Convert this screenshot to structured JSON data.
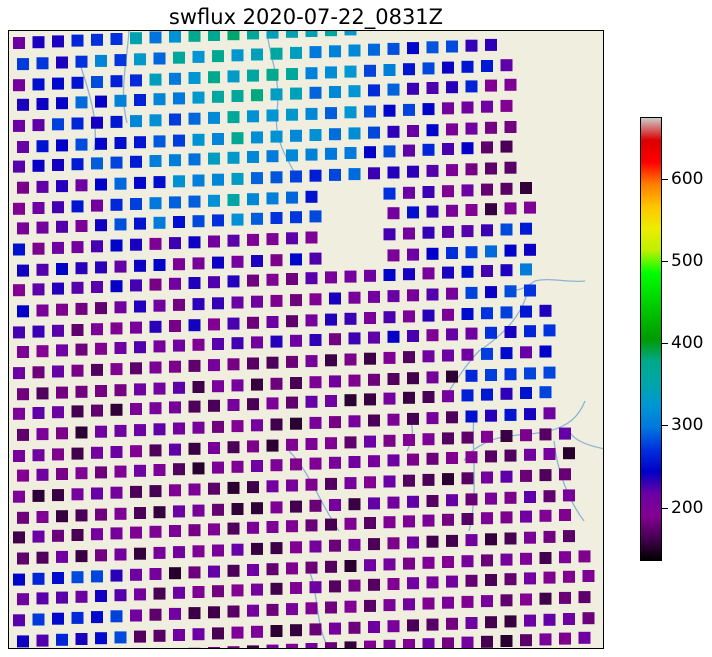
{
  "title": "swflux 2020-07-22_0831Z",
  "map": {
    "background_color": "#efeedf",
    "river_color": "#8fb3d4",
    "marker_shape": "square"
  },
  "colorbar": {
    "colormap": "nipy_spectral",
    "vmin": 135,
    "vmax": 675,
    "ticks": [
      {
        "value": 200,
        "label": "200"
      },
      {
        "value": 300,
        "label": "300"
      },
      {
        "value": 400,
        "label": "400"
      },
      {
        "value": 500,
        "label": "500"
      },
      {
        "value": 600,
        "label": "600"
      }
    ]
  }
}
